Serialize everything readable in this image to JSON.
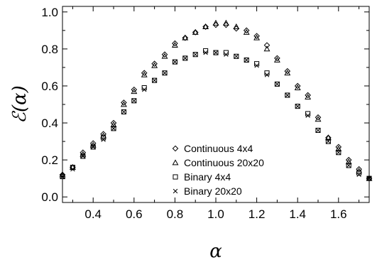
{
  "chart_data": {
    "type": "scatter",
    "xlabel": "α",
    "ylabel": "ℰ(α)",
    "xlim": [
      0.25,
      1.75
    ],
    "ylim": [
      -0.03,
      1.03
    ],
    "xticks": [
      0.4,
      0.6,
      0.8,
      1.0,
      1.2,
      1.4,
      1.6
    ],
    "yticks": [
      0.0,
      0.2,
      0.4,
      0.6,
      0.8,
      1.0
    ],
    "xtick_labels": [
      "0.4",
      "0.6",
      "0.8",
      "1.0",
      "1.2",
      "1.4",
      "1.6"
    ],
    "ytick_labels": [
      "0.0",
      "0.2",
      "0.4",
      "0.6",
      "0.8",
      "1.0"
    ],
    "grid": false,
    "legend_position": "bottom-center",
    "x": [
      0.25,
      0.3,
      0.35,
      0.4,
      0.45,
      0.5,
      0.55,
      0.6,
      0.65,
      0.7,
      0.75,
      0.8,
      0.85,
      0.9,
      0.95,
      1.0,
      1.05,
      1.1,
      1.15,
      1.2,
      1.25,
      1.3,
      1.35,
      1.4,
      1.45,
      1.5,
      1.55,
      1.6,
      1.65,
      1.7,
      1.75
    ],
    "series": [
      {
        "name": "Continuous 4x4",
        "marker": "diamond",
        "values": [
          0.12,
          0.16,
          0.24,
          0.29,
          0.34,
          0.4,
          0.51,
          0.58,
          0.67,
          0.72,
          0.77,
          0.83,
          0.86,
          0.89,
          0.92,
          0.93,
          0.93,
          0.91,
          0.9,
          0.87,
          0.82,
          0.75,
          0.68,
          0.6,
          0.55,
          0.43,
          0.32,
          0.27,
          0.2,
          0.15,
          0.1
        ]
      },
      {
        "name": "Continuous 20x20",
        "marker": "triangle",
        "values": [
          0.12,
          0.16,
          0.23,
          0.28,
          0.33,
          0.39,
          0.5,
          0.57,
          0.66,
          0.71,
          0.76,
          0.82,
          0.86,
          0.89,
          0.92,
          0.94,
          0.94,
          0.92,
          0.89,
          0.86,
          0.8,
          0.74,
          0.67,
          0.59,
          0.54,
          0.42,
          0.32,
          0.26,
          0.19,
          0.14,
          0.1
        ]
      },
      {
        "name": "Binary 4x4",
        "marker": "square",
        "values": [
          0.11,
          0.16,
          0.22,
          0.27,
          0.32,
          0.37,
          0.46,
          0.52,
          0.59,
          0.63,
          0.67,
          0.73,
          0.75,
          0.77,
          0.79,
          0.78,
          0.78,
          0.76,
          0.74,
          0.72,
          0.67,
          0.61,
          0.55,
          0.49,
          0.45,
          0.36,
          0.3,
          0.24,
          0.17,
          0.13,
          0.1
        ]
      },
      {
        "name": "Binary 20x20",
        "marker": "cross",
        "values": [
          0.11,
          0.15,
          0.22,
          0.27,
          0.31,
          0.37,
          0.46,
          0.52,
          0.58,
          0.63,
          0.67,
          0.73,
          0.75,
          0.77,
          0.78,
          0.78,
          0.77,
          0.76,
          0.74,
          0.71,
          0.66,
          0.61,
          0.55,
          0.49,
          0.44,
          0.36,
          0.3,
          0.24,
          0.17,
          0.12,
          0.1
        ]
      }
    ]
  }
}
